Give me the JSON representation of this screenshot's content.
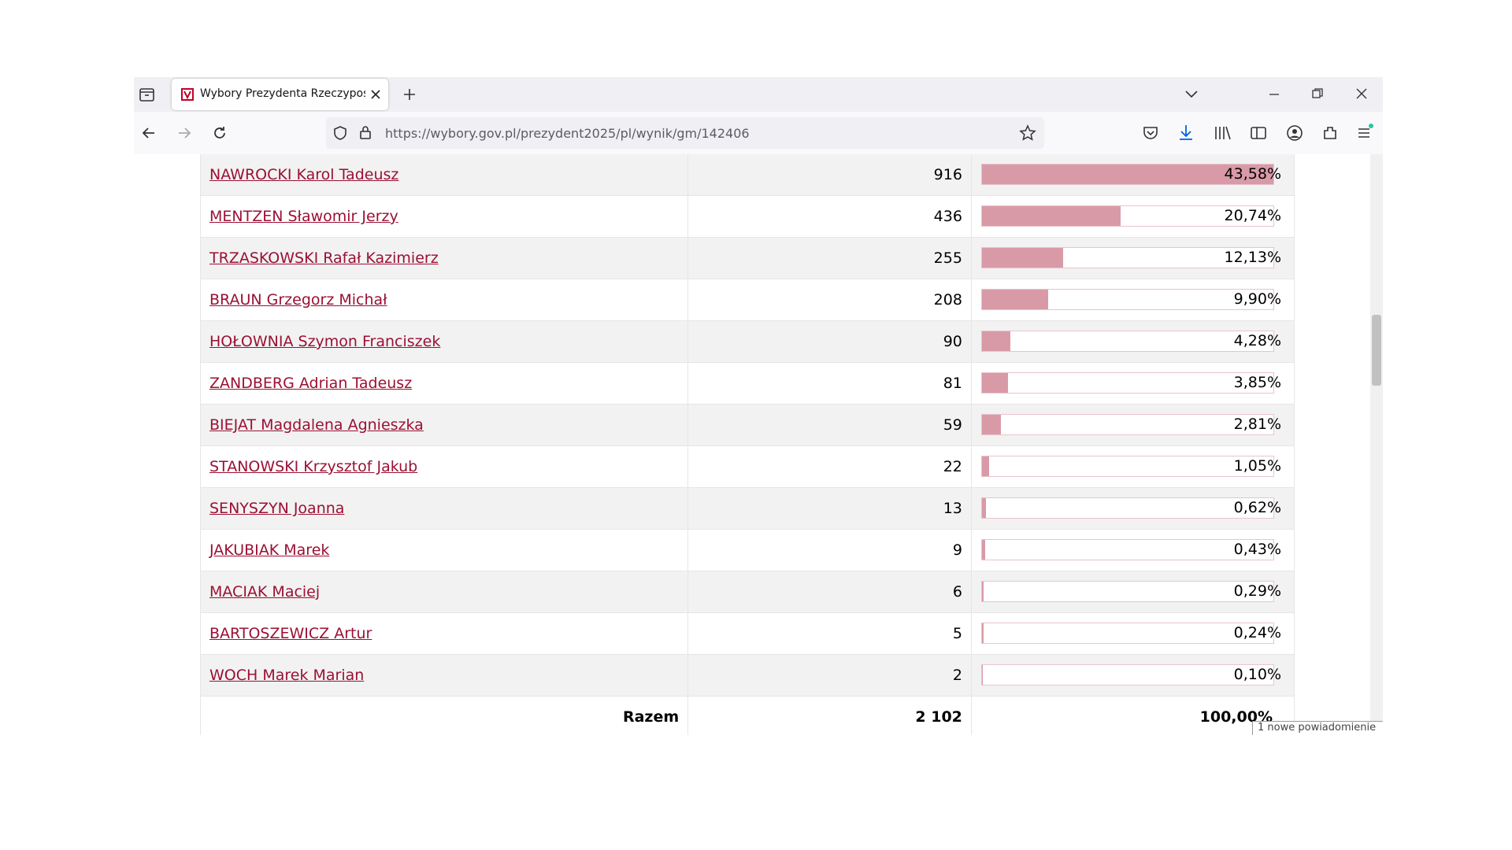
{
  "browser": {
    "tab_title": "Wybory Prezydenta Rzeczypospolitej",
    "url": "https://wybory.gov.pl/prezydent2025/pl/wynik/gm/142406",
    "notification": "1 nowe powiadomienie"
  },
  "table": {
    "rows": [
      {
        "name": "NAWROCKI Karol Tadeusz",
        "votes": 916,
        "share": {
          "value": 43.58,
          "label": "43,58%"
        }
      },
      {
        "name": "MENTZEN Sławomir Jerzy",
        "votes": 436,
        "share": {
          "value": 20.74,
          "label": "20,74%"
        }
      },
      {
        "name": "TRZASKOWSKI Rafał Kazimierz",
        "votes": 255,
        "share": {
          "value": 12.13,
          "label": "12,13%"
        }
      },
      {
        "name": "BRAUN Grzegorz Michał",
        "votes": 208,
        "share": {
          "value": 9.9,
          "label": "9,90%"
        }
      },
      {
        "name": "HOŁOWNIA Szymon Franciszek",
        "votes": 90,
        "share": {
          "value": 4.28,
          "label": "4,28%"
        }
      },
      {
        "name": "ZANDBERG Adrian Tadeusz",
        "votes": 81,
        "share": {
          "value": 3.85,
          "label": "3,85%"
        }
      },
      {
        "name": "BIEJAT Magdalena Agnieszka",
        "votes": 59,
        "share": {
          "value": 2.81,
          "label": "2,81%"
        }
      },
      {
        "name": "STANOWSKI Krzysztof Jakub",
        "votes": 22,
        "share": {
          "value": 1.05,
          "label": "1,05%"
        }
      },
      {
        "name": "SENYSZYN Joanna",
        "votes": 13,
        "share": {
          "value": 0.62,
          "label": "0,62%"
        }
      },
      {
        "name": "JAKUBIAK Marek",
        "votes": 9,
        "share": {
          "value": 0.43,
          "label": "0,43%"
        }
      },
      {
        "name": "MACIAK Maciej",
        "votes": 6,
        "share": {
          "value": 0.29,
          "label": "0,29%"
        }
      },
      {
        "name": "BARTOSZEWICZ Artur",
        "votes": 5,
        "share": {
          "value": 0.24,
          "label": "0,24%"
        }
      },
      {
        "name": "WOCH Marek Marian",
        "votes": 2,
        "share": {
          "value": 0.1,
          "label": "0,10%"
        }
      }
    ],
    "total": {
      "label": "Razem",
      "votes": {
        "value": 2102,
        "label": "2 102"
      },
      "share": {
        "value": 100,
        "label": "100,00%"
      }
    }
  }
}
